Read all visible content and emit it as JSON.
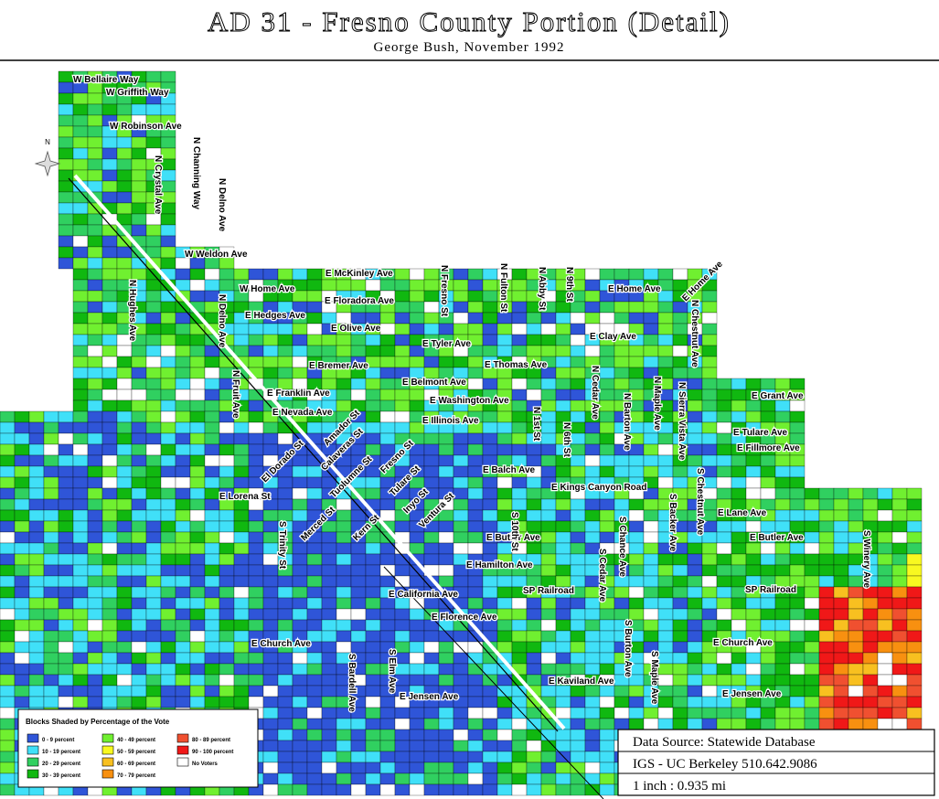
{
  "title": "AD 31 - Fresno County Portion (Detail)",
  "subtitle": "George Bush, November 1992",
  "compass": "N",
  "streets": [
    "W Bellaire Way",
    "W Griffith Way",
    "W Robinson Ave",
    "N Channing Way",
    "N Crystal Ave",
    "N Delno Ave",
    "W Weldon Ave",
    "N Hughes Ave",
    "W Home Ave",
    "N Delno Ave",
    "E McKinley Ave",
    "E Floradora Ave",
    "E Hedges Ave",
    "E Olive Ave",
    "N Fruit Ave",
    "E Franklin Ave",
    "E Nevada Ave",
    "E Bremer Ave",
    "E Tyler Ave",
    "E Belmont Ave",
    "E Washington Ave",
    "E Illinois Ave",
    "N Fresno St",
    "N Fulton St",
    "N Abby St",
    "N 9th St",
    "E Home Ave",
    "E Home Ave",
    "N Chestnut Ave",
    "E Clay Ave",
    "E Thomas Ave",
    "N Cedar Ave",
    "N Maple Ave",
    "N Sierra Vista Ave",
    "E Grant Ave",
    "E Tulare Ave",
    "E Fillmore Ave",
    "N Barton Ave",
    "N 1st St",
    "N 6th St",
    "E Balch Ave",
    "E Kings Canyon Road",
    "S Chestnut Ave",
    "S Backer Ave",
    "E Lane Ave",
    "E Butler Ave",
    "S Winery Ave",
    "SP Railroad",
    "SP Railroad",
    "E Church Ave",
    "E Jensen Ave",
    "S Chance Ave",
    "S Cedar Ave",
    "S Burton Ave",
    "S Maple Ave",
    "E Kaviland Ave",
    "E Butler Ave",
    "E Hamilton Ave",
    "E California Ave",
    "E Florence Ave",
    "E Church Ave",
    "S Elm Ave",
    "S Bardell Ave",
    "E Jensen Ave",
    "E Lorena St",
    "S Trinity St",
    "El Dorado St",
    "Amador St",
    "Calaveras St",
    "Tuolumne St",
    "Fresno St",
    "Tulare St",
    "Inyo St",
    "Ventura St",
    "Merced St",
    "Kern St",
    "S 10th St"
  ],
  "legend": {
    "title": "Blocks Shaded by Percentage of the Vote",
    "items": [
      {
        "label": "0 - 9 percent",
        "color": "#2f55d8"
      },
      {
        "label": "10 - 19 percent",
        "color": "#40e0f8"
      },
      {
        "label": "20 - 29 percent",
        "color": "#30d060"
      },
      {
        "label": "30 - 39 percent",
        "color": "#10b810"
      },
      {
        "label": "40 - 49 percent",
        "color": "#70f030"
      },
      {
        "label": "50 - 59 percent",
        "color": "#f8f820"
      },
      {
        "label": "60 - 69 percent",
        "color": "#f8c020"
      },
      {
        "label": "70 - 79 percent",
        "color": "#f89010"
      },
      {
        "label": "80 - 89 percent",
        "color": "#f05030"
      },
      {
        "label": "90 - 100 percent",
        "color": "#f01818"
      },
      {
        "label": "No Voters",
        "color": "#ffffff"
      }
    ]
  },
  "source": [
    "Data Source: Statewide Database",
    "IGS - UC Berkeley 510.642.9086",
    "1 inch : 0.935 mi"
  ]
}
